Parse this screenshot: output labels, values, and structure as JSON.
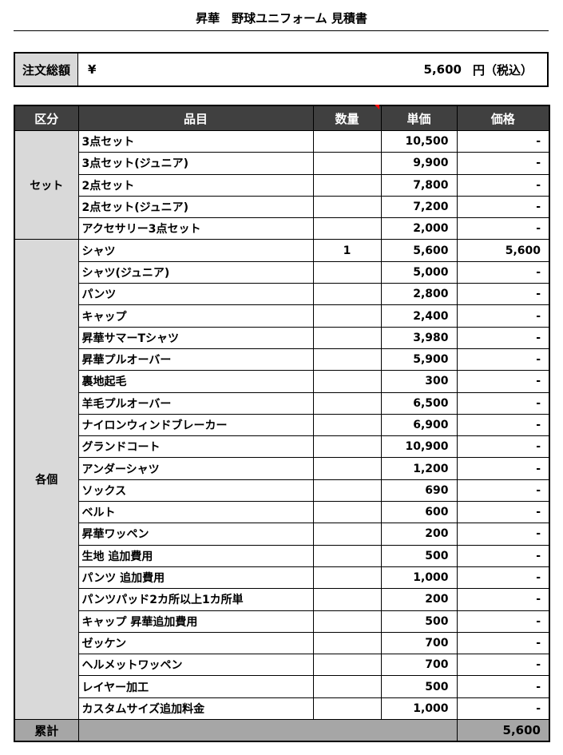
{
  "title": "昇華　野球ユニフォーム 見積書",
  "summary": {
    "label": "注文総額",
    "currency": "¥",
    "amount": "5,600",
    "unit": "円（税込）"
  },
  "headers": [
    "区分",
    "品目",
    "数量",
    "単価",
    "価格"
  ],
  "groups": [
    {
      "category": "セット",
      "items": [
        {
          "name": "3点セット",
          "qty": "",
          "unit_price": "10,500",
          "price": "-"
        },
        {
          "name": "3点セット(ジュニア)",
          "qty": "",
          "unit_price": "9,900",
          "price": "-"
        },
        {
          "name": "2点セット",
          "qty": "",
          "unit_price": "7,800",
          "price": "-"
        },
        {
          "name": "2点セット(ジュニア)",
          "qty": "",
          "unit_price": "7,200",
          "price": "-"
        },
        {
          "name": "アクセサリー3点セット",
          "qty": "",
          "unit_price": "2,000",
          "price": "-"
        }
      ]
    },
    {
      "category": "各個",
      "items": [
        {
          "name": "シャツ",
          "qty": "1",
          "unit_price": "5,600",
          "price": "5,600"
        },
        {
          "name": "シャツ(ジュニア)",
          "qty": "",
          "unit_price": "5,000",
          "price": "-"
        },
        {
          "name": "パンツ",
          "qty": "",
          "unit_price": "2,800",
          "price": "-"
        },
        {
          "name": "キャップ",
          "qty": "",
          "unit_price": "2,400",
          "price": "-"
        },
        {
          "name": "昇華サマーTシャツ",
          "qty": "",
          "unit_price": "3,980",
          "price": "-"
        },
        {
          "name": "昇華プルオーバー",
          "qty": "",
          "unit_price": "5,900",
          "price": "-"
        },
        {
          "name": "裏地起毛",
          "qty": "",
          "unit_price": "300",
          "price": "-"
        },
        {
          "name": "羊毛プルオーバー",
          "qty": "",
          "unit_price": "6,500",
          "price": "-"
        },
        {
          "name": "ナイロンウィンドブレーカー",
          "qty": "",
          "unit_price": "6,900",
          "price": "-"
        },
        {
          "name": "グランドコート",
          "qty": "",
          "unit_price": "10,900",
          "price": "-"
        },
        {
          "name": "アンダーシャツ",
          "qty": "",
          "unit_price": "1,200",
          "price": "-"
        },
        {
          "name": "ソックス",
          "qty": "",
          "unit_price": "690",
          "price": "-"
        },
        {
          "name": "ベルト",
          "qty": "",
          "unit_price": "600",
          "price": "-"
        },
        {
          "name": "昇華ワッペン",
          "qty": "",
          "unit_price": "200",
          "price": "-"
        },
        {
          "name": "生地 追加費用",
          "qty": "",
          "unit_price": "500",
          "price": "-"
        },
        {
          "name": "パンツ 追加費用",
          "qty": "",
          "unit_price": "1,000",
          "price": "-"
        },
        {
          "name": "パンツパッド2カ所以上1カ所単",
          "qty": "",
          "unit_price": "200",
          "price": "-"
        },
        {
          "name": "キャップ 昇華追加費用",
          "qty": "",
          "unit_price": "500",
          "price": "-"
        },
        {
          "name": "ゼッケン",
          "qty": "",
          "unit_price": "700",
          "price": "-"
        },
        {
          "name": "ヘルメットワッペン",
          "qty": "",
          "unit_price": "700",
          "price": "-"
        },
        {
          "name": "レイヤー加工",
          "qty": "",
          "unit_price": "500",
          "price": "-"
        },
        {
          "name": "カスタムサイズ追加料金",
          "qty": "",
          "unit_price": "1,000",
          "price": "-"
        }
      ]
    }
  ],
  "footer": {
    "label": "累計",
    "total": "5,600"
  }
}
